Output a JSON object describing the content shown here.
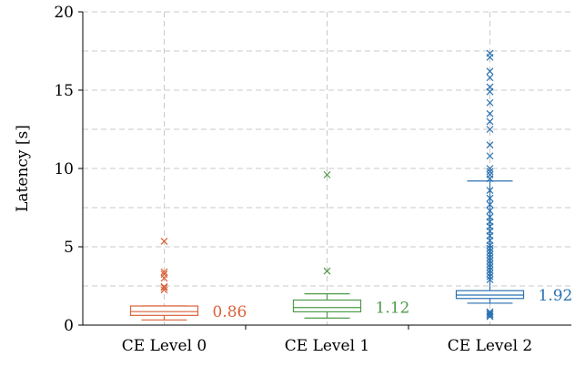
{
  "chart_data": {
    "type": "box",
    "ylabel": "Latency [s]",
    "ylim": [
      0,
      20
    ],
    "yticks": [
      0,
      5,
      10,
      15,
      20
    ],
    "grid": true,
    "categories": [
      "CE Level 0",
      "CE Level 1",
      "CE Level 2"
    ],
    "series": [
      {
        "category": "CE Level 0",
        "color": "#d9623a",
        "whisker_low": 0.33,
        "q1": 0.62,
        "median": 0.86,
        "q3": 1.22,
        "whisker_high": 1.22,
        "median_label": "0.86",
        "outliers": [
          2.25,
          2.4,
          2.45,
          3.0,
          3.25,
          3.4,
          5.35
        ]
      },
      {
        "category": "CE Level 1",
        "color": "#4f9a4a",
        "whisker_low": 0.45,
        "q1": 0.85,
        "median": 1.12,
        "q3": 1.6,
        "whisker_high": 2.0,
        "median_label": "1.12",
        "outliers": [
          3.45,
          9.6
        ]
      },
      {
        "category": "CE Level 2",
        "color": "#2b72b0",
        "whisker_low": 1.4,
        "q1": 1.7,
        "median": 1.92,
        "q3": 2.2,
        "whisker_high": 9.2,
        "median_label": "1.92",
        "outliers": [
          0.55,
          0.65,
          0.75,
          0.85,
          2.9,
          3.1,
          3.3,
          3.5,
          3.7,
          3.9,
          4.1,
          4.3,
          4.5,
          4.7,
          4.9,
          5.1,
          5.4,
          5.7,
          6.0,
          6.3,
          6.6,
          6.9,
          7.3,
          7.7,
          8.1,
          8.6,
          9.35,
          9.6,
          9.8,
          10.0,
          10.8,
          11.5,
          12.5,
          13.0,
          13.5,
          14.2,
          14.9,
          15.2,
          15.8,
          16.2,
          17.1,
          17.35
        ]
      }
    ]
  }
}
